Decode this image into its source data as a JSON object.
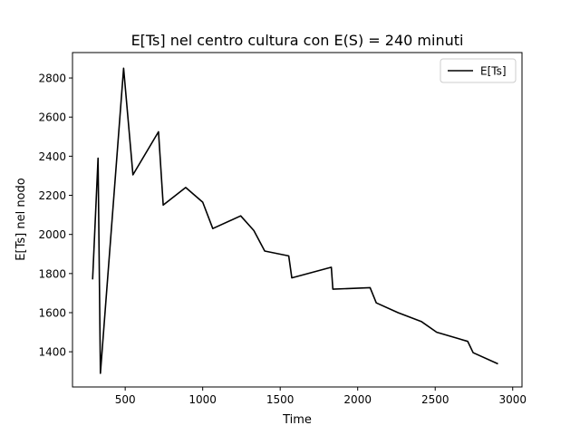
{
  "chart_data": {
    "type": "line",
    "title": "E[Ts] nel centro cultura con E(S) = 240 minuti",
    "xlabel": "Time",
    "ylabel": "E[Ts] nel nodo",
    "xlim": [
      160,
      3060
    ],
    "ylim": [
      1220,
      2930
    ],
    "xticks": [
      500,
      1000,
      1500,
      2000,
      2500,
      3000
    ],
    "yticks": [
      1400,
      1600,
      1800,
      2000,
      2200,
      2400,
      2600,
      2800
    ],
    "grid": false,
    "legend_position": "top-right",
    "series": [
      {
        "name": "E[Ts]",
        "color": "#000000",
        "x": [
          290,
          325,
          340,
          490,
          550,
          715,
          745,
          890,
          1000,
          1065,
          1245,
          1330,
          1400,
          1555,
          1575,
          1830,
          1840,
          2080,
          2120,
          2260,
          2410,
          2510,
          2710,
          2745,
          2905
        ],
        "y": [
          1770,
          2390,
          1290,
          2850,
          2305,
          2525,
          2150,
          2240,
          2165,
          2030,
          2095,
          2020,
          1915,
          1890,
          1778,
          1832,
          1720,
          1728,
          1650,
          1600,
          1555,
          1500,
          1453,
          1395,
          1338
        ]
      }
    ]
  }
}
